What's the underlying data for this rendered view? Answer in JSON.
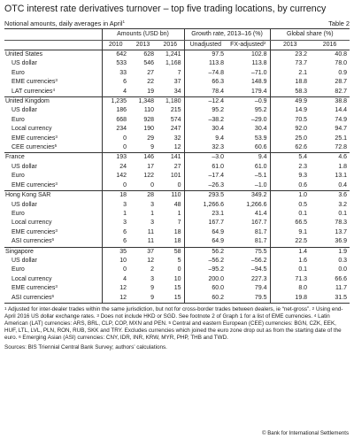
{
  "title": "OTC interest rate derivatives turnover – top five trading locations, by currency",
  "subtitle": "Notional amounts, daily averages in April",
  "subtitle_sup": "1",
  "table_label": "Table 2",
  "headers": {
    "group1": "Amounts (USD bn)",
    "group2": "Growth rate, 2013–16 (%)",
    "group3": "Global share (%)",
    "cols": [
      "2010",
      "2013",
      "2016",
      "Unadjusted",
      "FX-adjusted",
      "2013",
      "2016"
    ],
    "fx_sup": "2"
  },
  "sections": [
    {
      "rows": [
        {
          "label": "United States",
          "sup": "",
          "sub": false,
          "values": [
            "642",
            "628",
            "1,241",
            "97.5",
            "102.8",
            "23.2",
            "40.8"
          ]
        },
        {
          "label": "US dollar",
          "sup": "",
          "sub": true,
          "values": [
            "533",
            "546",
            "1,168",
            "113.8",
            "113.8",
            "73.7",
            "78.0"
          ]
        },
        {
          "label": "Euro",
          "sup": "",
          "sub": true,
          "values": [
            "33",
            "27",
            "7",
            "–74.8",
            "–71.0",
            "2.1",
            "0.9"
          ]
        },
        {
          "label": "EME currencies",
          "sup": "3",
          "sub": true,
          "values": [
            "6",
            "22",
            "37",
            "66.3",
            "148.9",
            "18.8",
            "28.7"
          ]
        },
        {
          "label": "LAT currencies",
          "sup": "4",
          "sub": true,
          "values": [
            "4",
            "19",
            "34",
            "78.4",
            "179.4",
            "58.3",
            "82.7"
          ]
        }
      ]
    },
    {
      "rows": [
        {
          "label": "United Kingdom",
          "sup": "",
          "sub": false,
          "values": [
            "1,235",
            "1,348",
            "1,180",
            "–12.4",
            "–0.9",
            "49.9",
            "38.8"
          ]
        },
        {
          "label": "US dollar",
          "sup": "",
          "sub": true,
          "values": [
            "186",
            "110",
            "215",
            "95.2",
            "95.2",
            "14.9",
            "14.4"
          ]
        },
        {
          "label": "Euro",
          "sup": "",
          "sub": true,
          "values": [
            "668",
            "928",
            "574",
            "–38.2",
            "–29.0",
            "70.5",
            "74.9"
          ]
        },
        {
          "label": "Local currency",
          "sup": "",
          "sub": true,
          "values": [
            "234",
            "190",
            "247",
            "30.4",
            "30.4",
            "92.0",
            "94.7"
          ]
        },
        {
          "label": "EME currencies",
          "sup": "3",
          "sub": true,
          "values": [
            "0",
            "29",
            "32",
            "9.4",
            "53.9",
            "25.0",
            "25.1"
          ]
        },
        {
          "label": "CEE currencies",
          "sup": "5",
          "sub": true,
          "values": [
            "0",
            "9",
            "12",
            "32.3",
            "60.6",
            "62.6",
            "72.8"
          ]
        }
      ]
    },
    {
      "rows": [
        {
          "label": "France",
          "sup": "",
          "sub": false,
          "values": [
            "193",
            "146",
            "141",
            "–3.0",
            "9.4",
            "5.4",
            "4.6"
          ]
        },
        {
          "label": "US dollar",
          "sup": "",
          "sub": true,
          "values": [
            "24",
            "17",
            "27",
            "61.0",
            "61.0",
            "2.3",
            "1.8"
          ]
        },
        {
          "label": "Euro",
          "sup": "",
          "sub": true,
          "values": [
            "142",
            "122",
            "101",
            "–17.4",
            "–5.1",
            "9.3",
            "13.1"
          ]
        },
        {
          "label": "EME currencies",
          "sup": "3",
          "sub": true,
          "values": [
            "0",
            "0",
            "0",
            "–26.3",
            "–1.0",
            "0.6",
            "0.4"
          ]
        }
      ]
    },
    {
      "rows": [
        {
          "label": "Hong Kong SAR",
          "sup": "",
          "sub": false,
          "values": [
            "18",
            "28",
            "110",
            "293.5",
            "349.2",
            "1.0",
            "3.6"
          ]
        },
        {
          "label": "US dollar",
          "sup": "",
          "sub": true,
          "values": [
            "3",
            "3",
            "48",
            "1,266.6",
            "1,266.6",
            "0.5",
            "3.2"
          ]
        },
        {
          "label": "Euro",
          "sup": "",
          "sub": true,
          "values": [
            "1",
            "1",
            "1",
            "23.1",
            "41.4",
            "0.1",
            "0.1"
          ]
        },
        {
          "label": "Local currency",
          "sup": "",
          "sub": true,
          "values": [
            "3",
            "3",
            "7",
            "167.7",
            "167.7",
            "66.5",
            "78.3"
          ]
        },
        {
          "label": "EME currencies",
          "sup": "3",
          "sub": true,
          "values": [
            "6",
            "11",
            "18",
            "64.9",
            "81.7",
            "9.1",
            "13.7"
          ]
        },
        {
          "label": "ASI currencies",
          "sup": "6",
          "sub": true,
          "values": [
            "6",
            "11",
            "18",
            "64.9",
            "81.7",
            "22.5",
            "36.9"
          ]
        }
      ]
    },
    {
      "rows": [
        {
          "label": "Singapore",
          "sup": "",
          "sub": false,
          "values": [
            "35",
            "37",
            "58",
            "56.2",
            "75.5",
            "1.4",
            "1.9"
          ]
        },
        {
          "label": "US dollar",
          "sup": "",
          "sub": true,
          "values": [
            "10",
            "12",
            "5",
            "–56.2",
            "–56.2",
            "1.6",
            "0.3"
          ]
        },
        {
          "label": "Euro",
          "sup": "",
          "sub": true,
          "values": [
            "0",
            "2",
            "0",
            "–95.2",
            "–94.5",
            "0.1",
            "0.0"
          ]
        },
        {
          "label": "Local currency",
          "sup": "",
          "sub": true,
          "values": [
            "4",
            "3",
            "10",
            "200.0",
            "227.3",
            "71.3",
            "66.6"
          ]
        },
        {
          "label": "EME currencies",
          "sup": "3",
          "sub": true,
          "values": [
            "12",
            "9",
            "15",
            "60.0",
            "79.4",
            "8.0",
            "11.7"
          ]
        },
        {
          "label": "ASI currencies",
          "sup": "6",
          "sub": true,
          "values": [
            "12",
            "9",
            "15",
            "60.2",
            "79.5",
            "19.8",
            "31.5"
          ]
        }
      ]
    }
  ],
  "footnotes": {
    "n1_mark": "1",
    "n1": "Adjusted for inter-dealer trades within the same jurisdiction, but not for cross-border trades between dealers, ie “net-gross”.",
    "n2_mark": "2",
    "n2": "Using end-April 2016 US dollar exchange rates.",
    "n3_mark": "3",
    "n3": "Does not include HKD or SGD. See footnote 2 of Graph 1 for a list of EME currencies.",
    "n4_mark": "4",
    "n4": "Latin American (LAT) currencies: ARS, BRL, CLP, COP, MXN and PEN.",
    "n5_mark": "5",
    "n5": "Central and eastern European (CEE) currencies: BGN, CZK, EEK, HUF, LTL, LVL, PLN, RON, RUB, SKK and TRY.",
    "n5b": "Excludes currencies which joined the euro zone drop out as from the starting date of the euro.",
    "n6_mark": "6",
    "n6": "Emerging Asian (ASI) currencies: CNY, IDR, INR, KRW, MYR, PHP, THB and TWD."
  },
  "sources": "Sources: BIS Triennial Central Bank Survey; authors’ calculations.",
  "copyright": "© Bank for International Settlements"
}
